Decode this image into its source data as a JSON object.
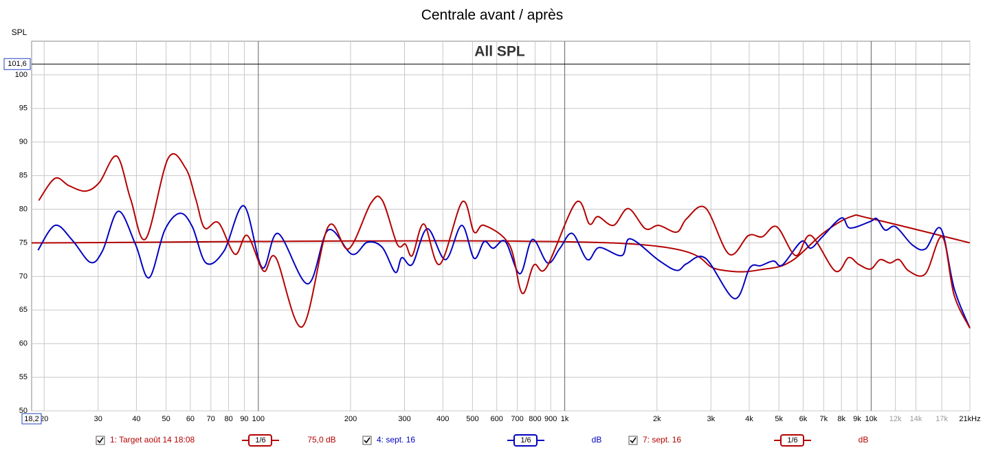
{
  "chart_data": {
    "type": "line",
    "title": "Centrale avant / après",
    "subtitle": "All SPL",
    "ylabel": "SPL",
    "log_x": true,
    "grid": true,
    "xlim": [
      18.2,
      21000
    ],
    "ylim": [
      50,
      105
    ],
    "yticks": [
      50,
      55,
      60,
      65,
      70,
      75,
      80,
      85,
      90,
      95,
      100
    ],
    "xticks": [
      20,
      30,
      40,
      50,
      60,
      70,
      80,
      90,
      100,
      200,
      300,
      400,
      500,
      600,
      700,
      800,
      900,
      {
        "value": 1000,
        "label": "1k"
      },
      {
        "value": 2000,
        "label": "2k"
      },
      {
        "value": 3000,
        "label": "3k"
      },
      {
        "value": 4000,
        "label": "4k"
      },
      {
        "value": 5000,
        "label": "5k"
      },
      {
        "value": 6000,
        "label": "6k"
      },
      {
        "value": 7000,
        "label": "7k"
      },
      {
        "value": 8000,
        "label": "8k"
      },
      {
        "value": 9000,
        "label": "9k"
      },
      {
        "value": 10000,
        "label": "10k"
      },
      {
        "value": 12000,
        "label": "12k"
      },
      {
        "value": 14000,
        "label": "14k"
      },
      {
        "value": 17000,
        "label": "17k"
      },
      {
        "value": 21000,
        "label": "21kHz"
      }
    ],
    "cursor": {
      "value": 101.6,
      "label": "101,6"
    },
    "x_start": {
      "value": 18.2,
      "label": "18,2"
    },
    "series": [
      {
        "name": "1: Target août 14 18:08",
        "color": "#b40000",
        "smoothing": "1/6",
        "offset": "75,0 dB",
        "x": [
          18.2,
          1400,
          3200,
          4500,
          5500,
          7000,
          8600,
          10000,
          21000
        ],
        "values": [
          75,
          75,
          71.0,
          71.1,
          72.3,
          76.5,
          78.9,
          78.6,
          75.0
        ]
      },
      {
        "name": "4: sept. 16",
        "color": "#0000c0",
        "smoothing": "1/6",
        "offset": "dB",
        "x": [
          19.1,
          21.7,
          24.7,
          28.3,
          31.0,
          34.9,
          39.7,
          44.0,
          49.5,
          55.5,
          60.9,
          67.5,
          77.3,
          89.7,
          103,
          116,
          145,
          169,
          202,
          227,
          254,
          280,
          294,
          318,
          356,
          408,
          461,
          506,
          546,
          584,
          640,
          714,
          784,
          880,
          965,
          1059,
          1185,
          1296,
          1534,
          1637,
          2026,
          2320,
          2500,
          2880,
          3580,
          4020,
          4360,
          4800,
          5130,
          5920,
          6350,
          6930,
          8000,
          8530,
          9960,
          10430,
          11110,
          12020,
          13620,
          15040,
          16890,
          18660,
          21000
        ],
        "values": [
          73.9,
          77.6,
          75.4,
          72.1,
          73.8,
          79.7,
          74.8,
          69.8,
          76.9,
          79.4,
          77.4,
          72.0,
          73.8,
          80.5,
          71.3,
          76.4,
          68.9,
          76.9,
          73.3,
          75.1,
          74.3,
          70.6,
          72.8,
          71.8,
          77.1,
          72.5,
          77.6,
          72.7,
          75.2,
          74.2,
          75.2,
          70.4,
          75.5,
          72.0,
          74.2,
          76.4,
          72.5,
          74.3,
          73.1,
          75.6,
          72.4,
          70.9,
          71.9,
          72.7,
          66.7,
          71.3,
          71.6,
          72.3,
          71.7,
          75.2,
          74.2,
          75.9,
          78.7,
          77.2,
          78.2,
          78.6,
          76.9,
          77.4,
          74.7,
          74.1,
          77.1,
          68.2,
          62.3
        ]
      },
      {
        "name": "7: sept. 16",
        "color": "#b40000",
        "smoothing": "1/6",
        "offset": "dB",
        "x": [
          19.2,
          21.7,
          24.1,
          27.3,
          30.3,
          34.5,
          38.3,
          42.9,
          50.8,
          57.9,
          62.5,
          66.8,
          74.1,
          83.9,
          92,
          104,
          114,
          139,
          169,
          197,
          233,
          254,
          284,
          302,
          318,
          347,
          391,
          463,
          506,
          546,
          660,
          726,
          793,
          871,
          1088,
          1204,
          1283,
          1442,
          1612,
          1834,
          2026,
          2320,
          2500,
          2880,
          3440,
          3980,
          4410,
          4920,
          5670,
          6350,
          7640,
          8440,
          9100,
          9960,
          10690,
          11520,
          12340,
          13280,
          15040,
          17060,
          18660,
          21000
        ],
        "values": [
          81.3,
          84.6,
          83.5,
          82.7,
          84.0,
          87.9,
          81.5,
          75.6,
          87.6,
          86.1,
          81.5,
          77.2,
          78.0,
          73.3,
          76.1,
          70.8,
          72.8,
          62.5,
          77.4,
          74.1,
          80.9,
          81.3,
          74.8,
          74.8,
          73.1,
          77.8,
          71.8,
          81.1,
          76.6,
          77.6,
          74.7,
          67.5,
          71.7,
          71.3,
          81.0,
          77.8,
          78.9,
          77.6,
          80.1,
          77.1,
          77.6,
          76.6,
          78.6,
          80.2,
          73.3,
          76.1,
          75.9,
          77.4,
          73.1,
          76.1,
          70.8,
          72.8,
          71.8,
          71.1,
          72.5,
          72.0,
          72.5,
          70.8,
          70.4,
          75.9,
          67.2,
          62.3
        ]
      }
    ]
  }
}
